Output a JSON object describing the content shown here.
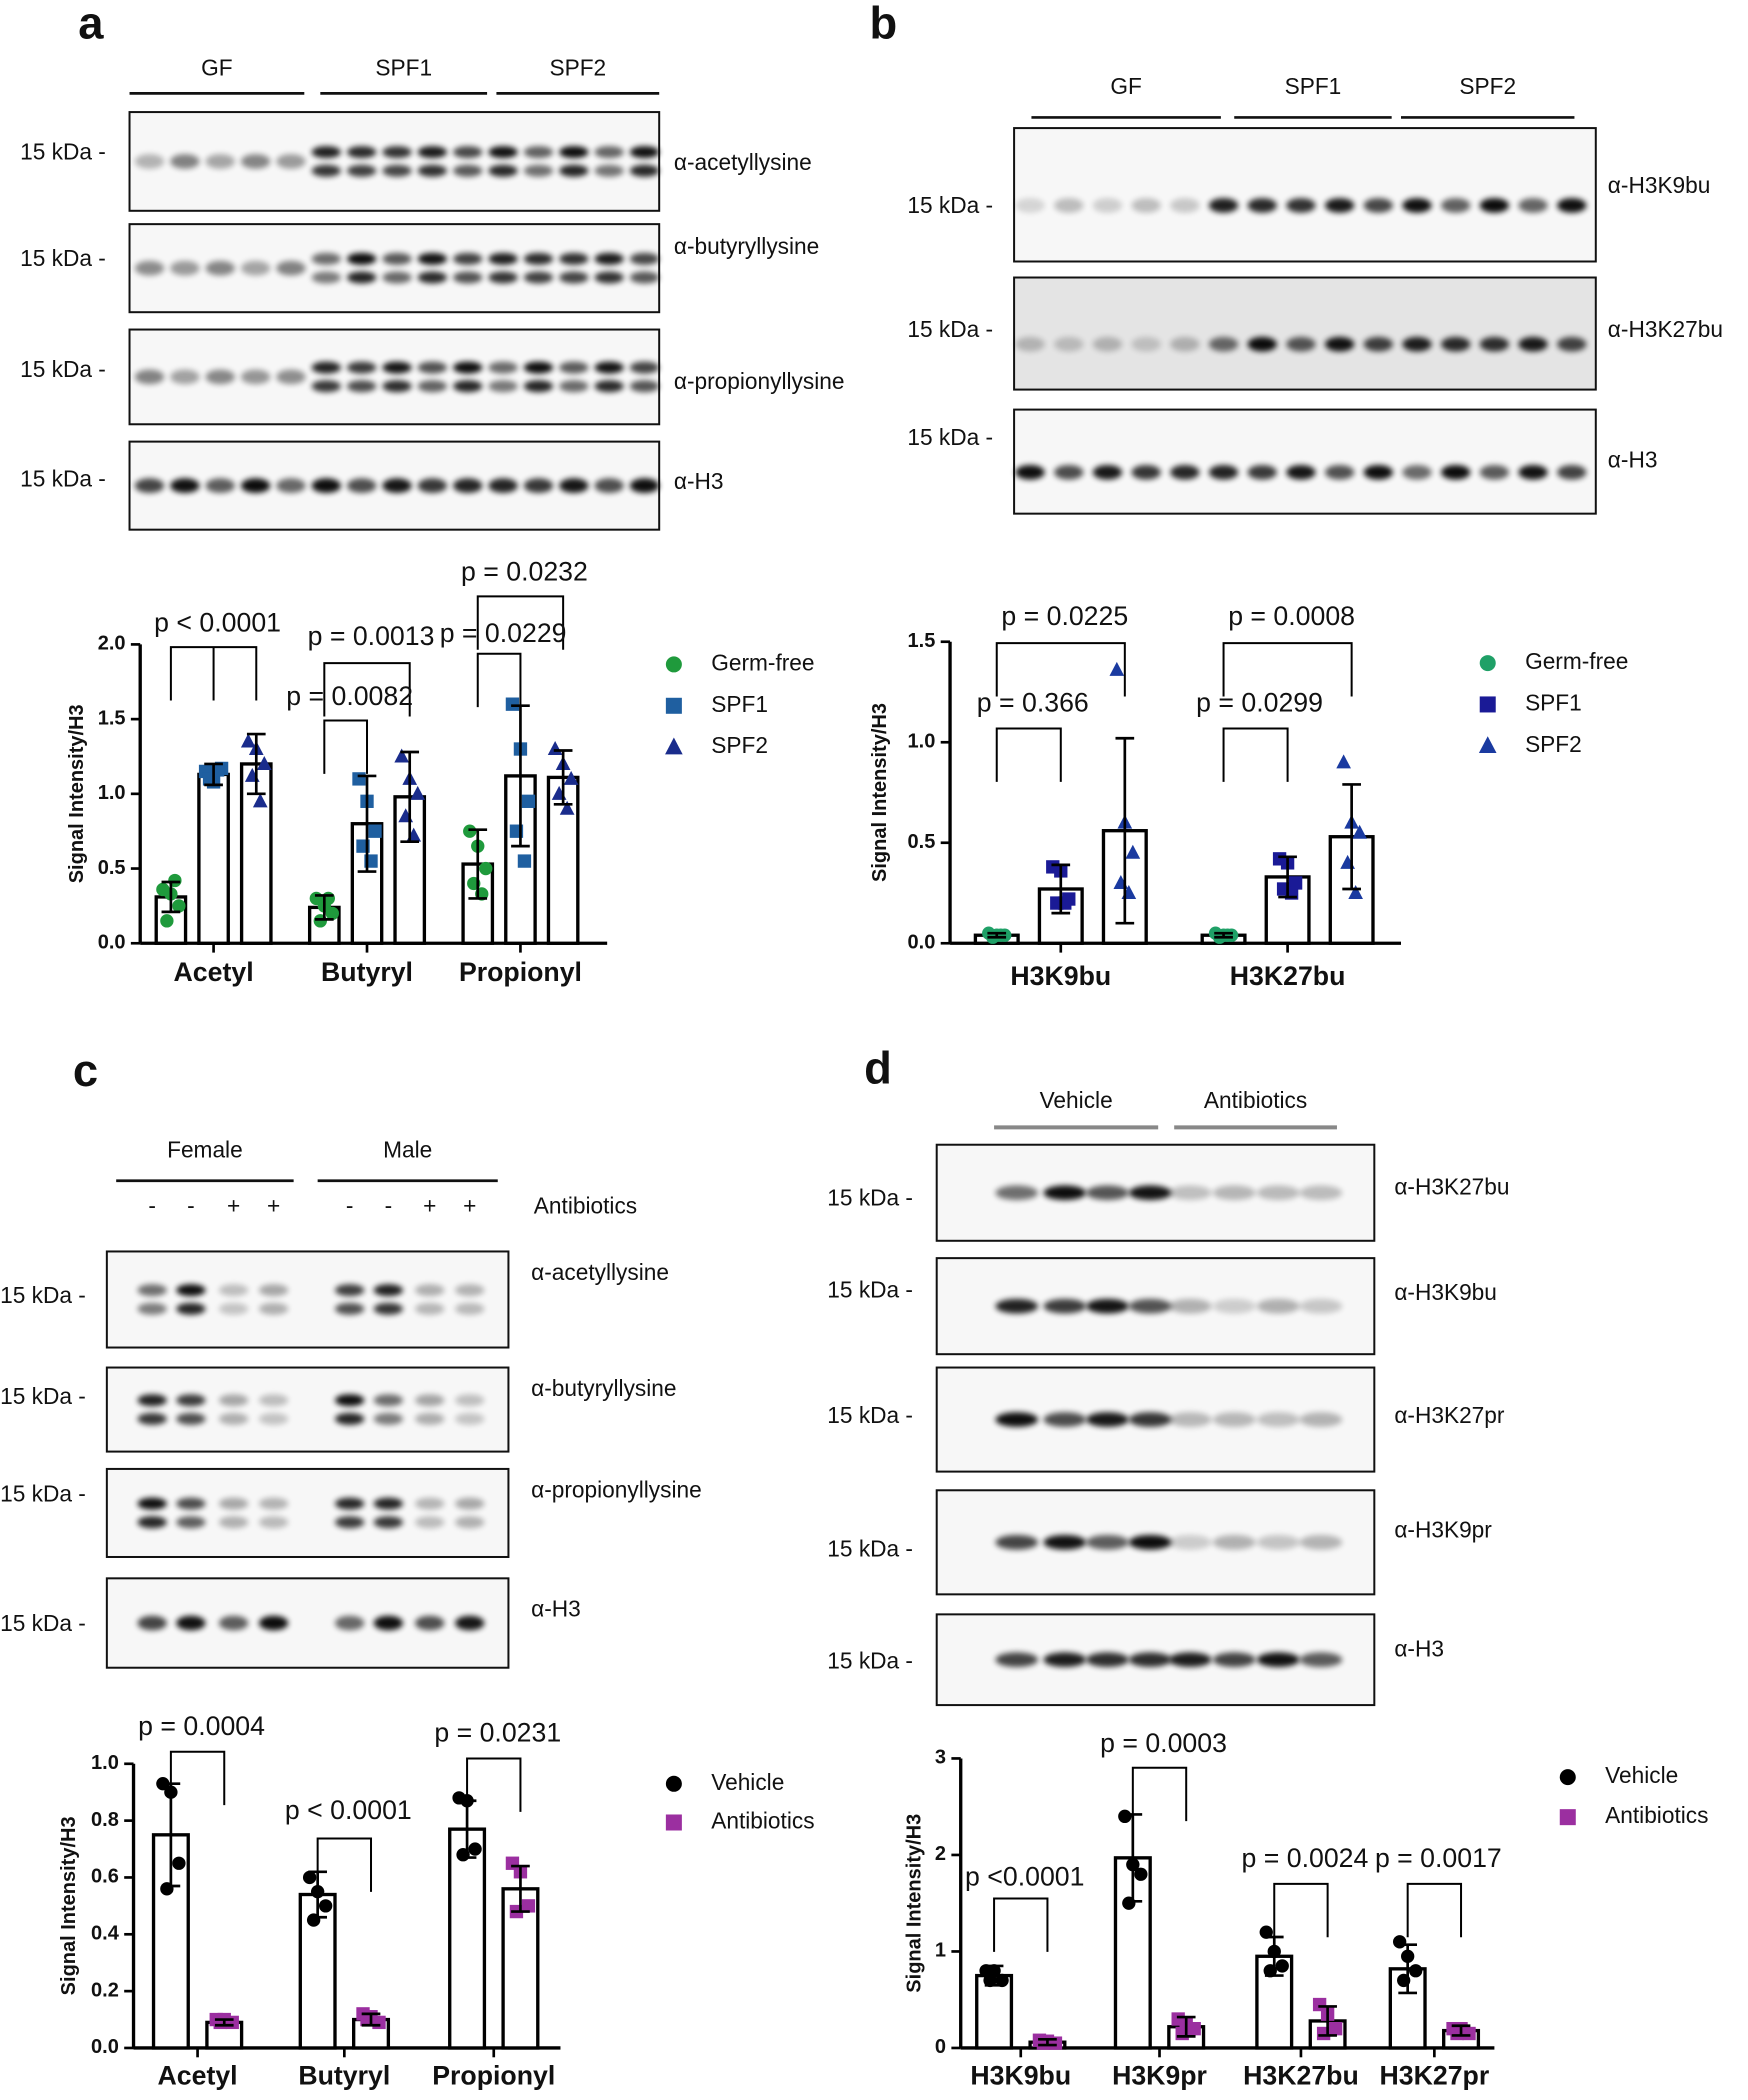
{
  "panels": [
    {
      "label": "a",
      "blot": {
        "groups": [
          "GF",
          "SPF1",
          "SPF2"
        ],
        "rows": [
          {
            "marker": "15 kDa -",
            "antibody": "α-acetyllysine"
          },
          {
            "marker": "15 kDa -",
            "antibody": "α-butyryllysine"
          },
          {
            "marker": "15 kDa -",
            "antibody": "α-propionyllysine"
          },
          {
            "marker": "15 kDa -",
            "antibody": "α-H3"
          }
        ]
      }
    },
    {
      "label": "b",
      "blot": {
        "groups": [
          "GF",
          "SPF1",
          "SPF2"
        ],
        "rows": [
          {
            "marker": "15 kDa -",
            "antibody": "α-H3K9bu"
          },
          {
            "marker": "15 kDa -",
            "antibody": "α-H3K27bu"
          },
          {
            "marker": "15 kDa -",
            "antibody": "α-H3"
          }
        ]
      }
    },
    {
      "label": "c",
      "blot": {
        "groups": [
          "Female",
          "Male"
        ],
        "lanes": [
          "-",
          "-",
          "+",
          "+",
          "-",
          "-",
          "+",
          "+"
        ],
        "lanes_label": "Antibiotics",
        "rows": [
          {
            "marker": "15 kDa -",
            "antibody": "α-acetyllysine"
          },
          {
            "marker": "15 kDa -",
            "antibody": "α-butyryllysine"
          },
          {
            "marker": "15 kDa -",
            "antibody": "α-propionyllysine"
          },
          {
            "marker": "15 kDa -",
            "antibody": "α-H3"
          }
        ]
      }
    },
    {
      "label": "d",
      "blot": {
        "groups": [
          "Vehicle",
          "Antibiotics"
        ],
        "rows": [
          {
            "marker": "15 kDa -",
            "antibody": "α-H3K27bu"
          },
          {
            "marker": "15 kDa -",
            "antibody": "α-H3K9bu"
          },
          {
            "marker": "15 kDa -",
            "antibody": "α-H3K27pr"
          },
          {
            "marker": "15 kDa -",
            "antibody": "α-H3K9pr"
          },
          {
            "marker": "15 kDa -",
            "antibody": "α-H3"
          }
        ]
      }
    }
  ],
  "chart_data": [
    {
      "type": "bar",
      "y_label": "Signal Intensity/H3",
      "categories": [
        "Acetyl",
        "Butyryl",
        "Propionyl"
      ],
      "ylim": [
        0,
        2
      ],
      "yticks": [
        {
          "value": 0,
          "label": "0.0"
        },
        0.5,
        {
          "value": 1,
          "label": "1.0"
        },
        1.5,
        {
          "value": 2,
          "label": "2.0"
        }
      ],
      "annotations": [
        "p < 0.0001",
        "p = 0.0013",
        "p = 0.0082",
        "p = 0.0232",
        "p = 0.0229"
      ],
      "series": [
        {
          "name": "Germ-free",
          "color": "#1f9a3c",
          "marker": "circle",
          "values": [
            0.31,
            0.24,
            0.53
          ],
          "errors": [
            0.1,
            0.08,
            0.23
          ],
          "points": [
            [
              0.36,
              0.33,
              0.25,
              0.15,
              0.42
            ],
            [
              0.3,
              0.25,
              0.2,
              0.15,
              0.3
            ],
            [
              0.75,
              0.65,
              0.5,
              0.4,
              0.33
            ]
          ]
        },
        {
          "name": "SPF1",
          "color": "#1f5fa0",
          "marker": "square",
          "values": [
            1.13,
            0.8,
            1.12
          ],
          "errors": [
            0.07,
            0.32,
            0.47
          ],
          "points": [
            [
              1.15,
              1.08,
              1.17,
              1.1,
              1.16
            ],
            [
              1.1,
              0.95,
              0.75,
              0.65,
              0.55
            ],
            [
              1.6,
              1.3,
              0.95,
              0.75,
              0.55
            ]
          ]
        },
        {
          "name": "SPF2",
          "color": "#1a2c8c",
          "marker": "triangle",
          "values": [
            1.2,
            0.98,
            1.11
          ],
          "errors": [
            0.2,
            0.3,
            0.18
          ],
          "points": [
            [
              1.35,
              1.3,
              1.2,
              1.12,
              0.95
            ],
            [
              1.25,
              1.1,
              1.0,
              0.85,
              0.72
            ],
            [
              1.3,
              1.2,
              1.1,
              1.0,
              0.9
            ]
          ]
        }
      ]
    },
    {
      "type": "bar",
      "y_label": "Signal Intensity/H3",
      "categories": [
        "H3K9bu",
        "H3K27bu"
      ],
      "ylim": [
        0,
        1.5
      ],
      "yticks": [
        {
          "value": 0,
          "label": "0.0"
        },
        0.5,
        {
          "value": 1,
          "label": "1.0"
        },
        1.5
      ],
      "annotations": [
        "p = 0.0225",
        "p = 0.366",
        "p = 0.0008",
        "p = 0.0299"
      ],
      "series": [
        {
          "name": "Germ-free",
          "color": "#1fa067",
          "marker": "circle",
          "values": [
            0.04,
            0.04
          ],
          "errors": [
            0.01,
            0.01
          ],
          "points": [
            [
              0.05,
              0.04,
              0.04,
              0.03,
              0.04
            ],
            [
              0.05,
              0.04,
              0.04,
              0.03,
              0.04
            ]
          ]
        },
        {
          "name": "SPF1",
          "color": "#1a1a96",
          "marker": "square",
          "values": [
            0.27,
            0.33
          ],
          "errors": [
            0.12,
            0.1
          ],
          "points": [
            [
              0.38,
              0.36,
              0.22,
              0.2,
              0.2
            ],
            [
              0.42,
              0.4,
              0.3,
              0.27,
              0.25
            ]
          ]
        },
        {
          "name": "SPF2",
          "color": "#1a3aa0",
          "marker": "triangle",
          "values": [
            0.56,
            0.53
          ],
          "errors": [
            0.46,
            0.26
          ],
          "points": [
            [
              1.36,
              0.6,
              0.45,
              0.3,
              0.25
            ],
            [
              0.9,
              0.6,
              0.55,
              0.4,
              0.25
            ]
          ]
        }
      ]
    },
    {
      "type": "bar",
      "y_label": "Signal Intensity/H3",
      "categories": [
        "Acetyl",
        "Butyryl",
        "Propionyl"
      ],
      "ylim": [
        0,
        1
      ],
      "yticks": [
        {
          "value": 0,
          "label": "0.0"
        },
        0.2,
        0.4,
        0.6,
        0.8,
        {
          "value": 1,
          "label": "1.0"
        }
      ],
      "annotations": [
        "p = 0.0004",
        "p < 0.0001",
        "p = 0.0231"
      ],
      "series": [
        {
          "name": "Vehicle",
          "color": "#000000",
          "marker": "circle",
          "values": [
            0.75,
            0.54,
            0.77
          ],
          "errors": [
            0.18,
            0.08,
            0.1
          ],
          "points": [
            [
              0.93,
              0.9,
              0.65,
              0.56
            ],
            [
              0.6,
              0.55,
              0.5,
              0.45
            ],
            [
              0.88,
              0.87,
              0.7,
              0.68
            ]
          ]
        },
        {
          "name": "Antibiotics",
          "color": "#9b2fa0",
          "marker": "square",
          "values": [
            0.09,
            0.1,
            0.56
          ],
          "errors": [
            0.01,
            0.02,
            0.08
          ],
          "points": [
            [
              0.1,
              0.1,
              0.09,
              0.09
            ],
            [
              0.12,
              0.11,
              0.09,
              0.1
            ],
            [
              0.65,
              0.62,
              0.5,
              0.48
            ]
          ]
        }
      ]
    },
    {
      "type": "bar",
      "y_label": "Signal Intensity/H3",
      "categories": [
        "H3K9bu",
        "H3K9pr",
        "H3K27bu",
        "H3K27pr"
      ],
      "ylim": [
        0,
        3
      ],
      "yticks": [
        0,
        1,
        2,
        3
      ],
      "annotations": [
        "p <0.0001",
        "p = 0.0003",
        "p = 0.0024",
        "p = 0.0017"
      ],
      "series": [
        {
          "name": "Vehicle",
          "color": "#000000",
          "marker": "circle",
          "values": [
            0.75,
            1.97,
            0.95,
            0.82
          ],
          "errors": [
            0.1,
            0.45,
            0.2,
            0.25
          ],
          "points": [
            [
              0.8,
              0.8,
              0.7,
              0.7
            ],
            [
              2.4,
              1.9,
              1.8,
              1.5
            ],
            [
              1.2,
              1.0,
              0.85,
              0.8
            ],
            [
              1.1,
              0.95,
              0.8,
              0.7
            ]
          ]
        },
        {
          "name": "Antibiotics",
          "color": "#9b2fa0",
          "marker": "square",
          "values": [
            0.06,
            0.22,
            0.28,
            0.18
          ],
          "errors": [
            0.03,
            0.1,
            0.15,
            0.05
          ],
          "points": [
            [
              0.08,
              0.07,
              0.05,
              0.05
            ],
            [
              0.3,
              0.25,
              0.2,
              0.15
            ],
            [
              0.45,
              0.35,
              0.2,
              0.15
            ],
            [
              0.2,
              0.2,
              0.15,
              0.15
            ]
          ]
        }
      ]
    }
  ]
}
